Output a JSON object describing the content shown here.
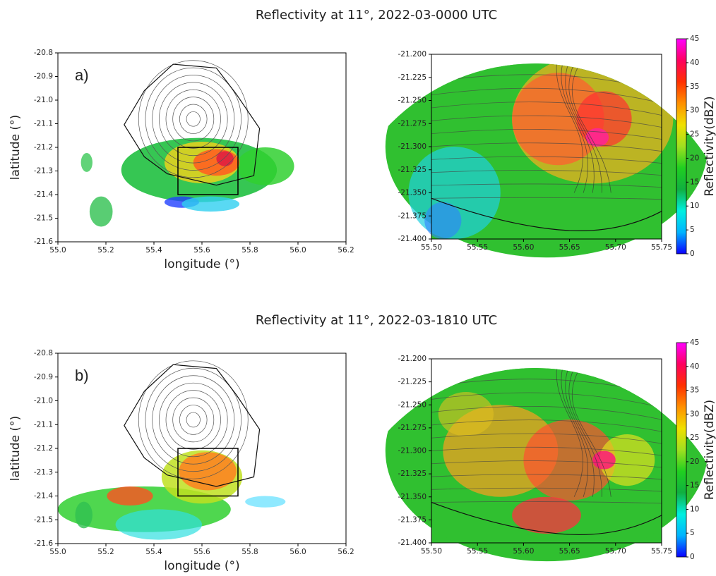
{
  "chart_data": [
    {
      "type": "map",
      "title": "Reflectivity at 11°, 2022-03-0000 UTC",
      "panel_label": "a)",
      "xlabel": "longitude (°)",
      "ylabel": "latitude (°)",
      "xlim": [
        55.0,
        56.2
      ],
      "ylim": [
        -21.6,
        -20.8
      ],
      "xticks": [
        {
          "value": 55,
          "label": "55.0"
        },
        55.2,
        55.4,
        55.6,
        55.8,
        {
          "value": 56,
          "label": "56.0"
        },
        56.2
      ],
      "yticks": [
        -20.8,
        -20.9,
        {
          "value": -21,
          "label": "-21.0"
        },
        -21.1,
        -21.2,
        -21.3,
        -21.4,
        -21.5,
        -21.6
      ]
    },
    {
      "type": "map",
      "xlim": [
        55.5,
        55.75
      ],
      "ylim": [
        -21.4,
        -21.2
      ],
      "xticks": [
        {
          "value": 55.5,
          "label": "55.50"
        },
        55.55,
        {
          "value": 55.6,
          "label": "55.60"
        },
        55.65,
        {
          "value": 55.7,
          "label": "55.70"
        },
        55.75
      ],
      "yticks": [
        {
          "value": -21.2,
          "label": "-21.200"
        },
        -21.225,
        {
          "value": -21.25,
          "label": "-21.250"
        },
        -21.275,
        {
          "value": -21.3,
          "label": "-21.300"
        },
        -21.325,
        {
          "value": -21.35,
          "label": "-21.350"
        },
        -21.375,
        {
          "value": -21.4,
          "label": "-21.400"
        }
      ],
      "colorbar": {
        "label": "Reflectivity(dBZ)",
        "lim": [
          0,
          45
        ],
        "ticks": [
          0,
          5,
          10,
          15,
          20,
          25,
          30,
          35,
          40,
          45
        ],
        "colors": [
          "#0a00ff",
          "#00b4ff",
          "#00f0e0",
          "#10b040",
          "#20d020",
          "#a0e020",
          "#f0e000",
          "#ff9000",
          "#ff3000",
          "#ff0060",
          "#ff00ff"
        ]
      }
    },
    {
      "type": "map",
      "title": "Reflectivity at 11°, 2022-03-1810 UTC",
      "panel_label": "b)",
      "xlabel": "longitude (°)",
      "ylabel": "latitude (°)",
      "xlim": [
        55.0,
        56.2
      ],
      "ylim": [
        -21.6,
        -20.8
      ],
      "xticks": [
        {
          "value": 55,
          "label": "55.0"
        },
        55.2,
        55.4,
        55.6,
        55.8,
        {
          "value": 56,
          "label": "56.0"
        },
        56.2
      ],
      "yticks": [
        -20.8,
        -20.9,
        {
          "value": -21,
          "label": "-21.0"
        },
        -21.1,
        -21.2,
        -21.3,
        -21.4,
        -21.5,
        -21.6
      ]
    },
    {
      "type": "map",
      "xlim": [
        55.5,
        55.75
      ],
      "ylim": [
        -21.4,
        -21.2
      ],
      "xticks": [
        {
          "value": 55.5,
          "label": "55.50"
        },
        55.55,
        {
          "value": 55.6,
          "label": "55.60"
        },
        55.65,
        {
          "value": 55.7,
          "label": "55.70"
        },
        55.75
      ],
      "yticks": [
        {
          "value": -21.2,
          "label": "-21.200"
        },
        -21.225,
        {
          "value": -21.25,
          "label": "-21.250"
        },
        -21.275,
        {
          "value": -21.3,
          "label": "-21.300"
        },
        -21.325,
        {
          "value": -21.35,
          "label": "-21.350"
        },
        -21.375,
        {
          "value": -21.4,
          "label": "-21.400"
        }
      ],
      "colorbar": {
        "label": "Reflectivity(dBZ)",
        "lim": [
          0,
          45
        ],
        "ticks": [
          0,
          5,
          10,
          15,
          20,
          25,
          30,
          35,
          40,
          45
        ],
        "colors": [
          "#0a00ff",
          "#00b4ff",
          "#00f0e0",
          "#10b040",
          "#20d020",
          "#a0e020",
          "#f0e000",
          "#ff9000",
          "#ff3000",
          "#ff0060",
          "#ff00ff"
        ]
      }
    }
  ]
}
